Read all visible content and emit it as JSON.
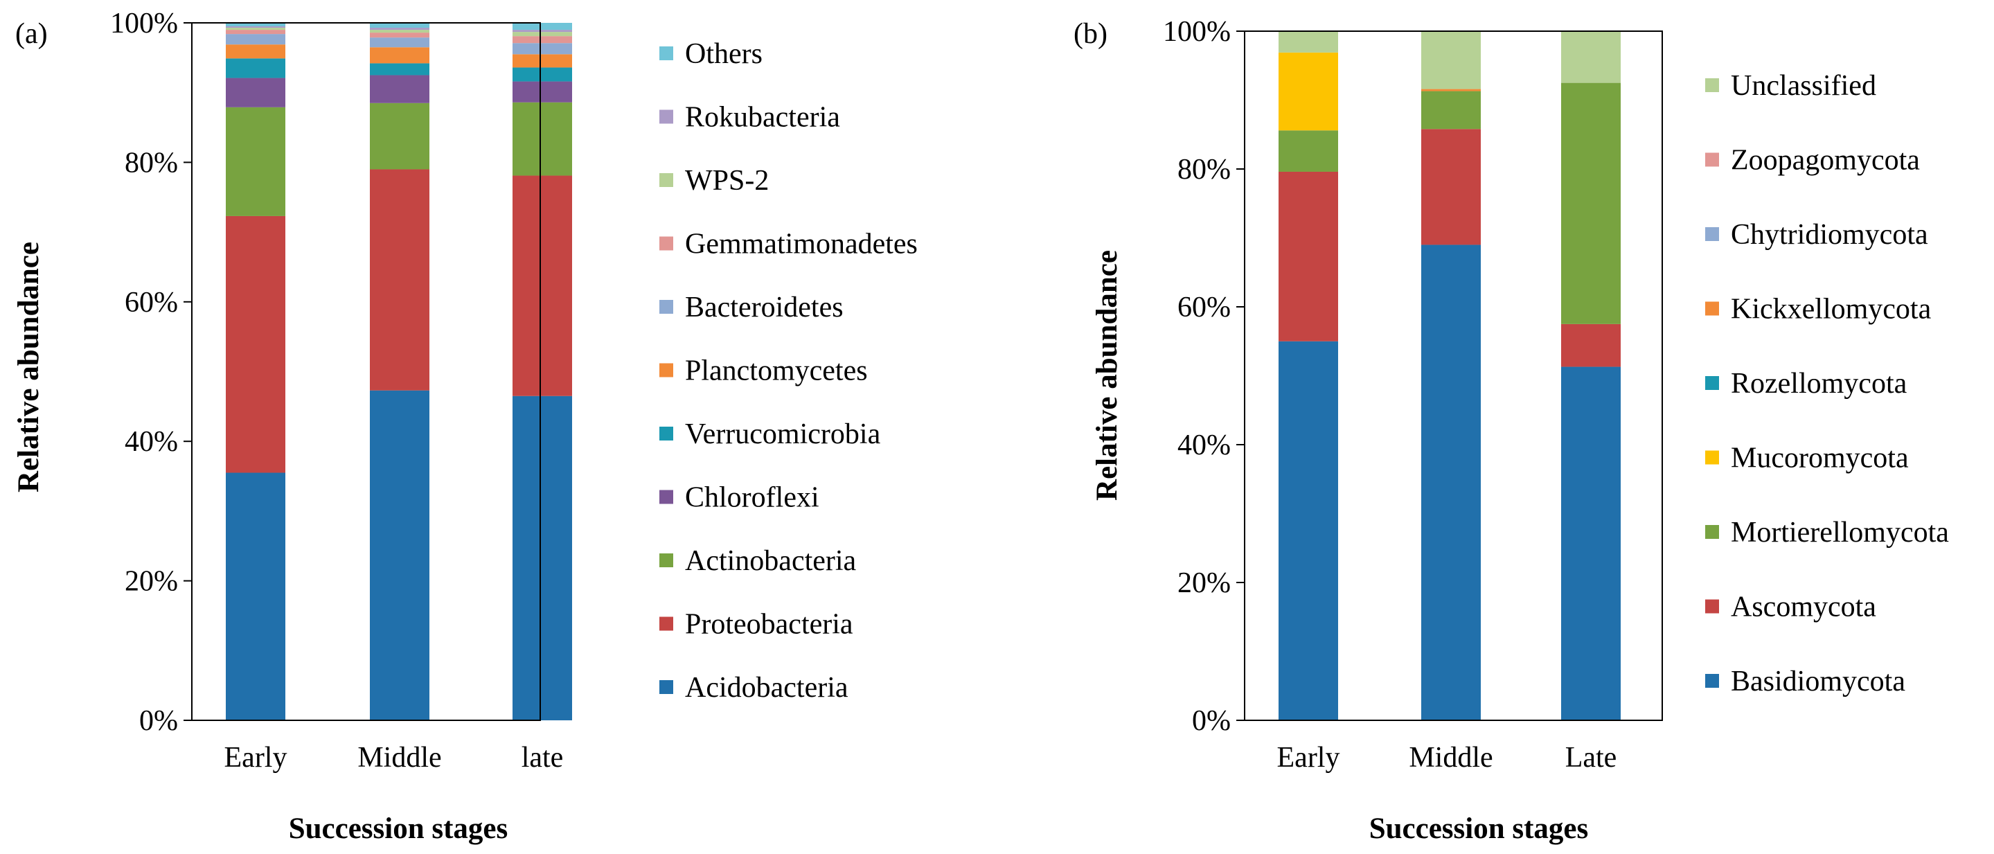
{
  "chart_data": [
    {
      "panel_label": "(a)",
      "type": "bar",
      "stacked": true,
      "percent": true,
      "categories": [
        "Early",
        "Middle",
        "late"
      ],
      "xlabel": "Succession stages",
      "ylabel": "Relative abundance",
      "ylim": [
        0,
        100
      ],
      "yticks": [
        "0%",
        "20%",
        "40%",
        "60%",
        "80%",
        "100%"
      ],
      "grid": false,
      "legend_position": "right",
      "series": [
        {
          "name": "Acidobacteria",
          "color": "#2170ab",
          "values": [
            35.5,
            47.3,
            46.5
          ]
        },
        {
          "name": "Proteobacteria",
          "color": "#c44543",
          "values": [
            36.8,
            31.7,
            31.6
          ]
        },
        {
          "name": "Actinobacteria",
          "color": "#78a340",
          "values": [
            15.6,
            9.5,
            10.5
          ]
        },
        {
          "name": "Chloroflexi",
          "color": "#7a5595",
          "values": [
            4.2,
            4.0,
            3.0
          ]
        },
        {
          "name": "Verrucomicrobia",
          "color": "#1a98b0",
          "values": [
            2.8,
            1.7,
            2.0
          ]
        },
        {
          "name": "Planctomycetes",
          "color": "#f28a37",
          "values": [
            2.0,
            2.3,
            1.9
          ]
        },
        {
          "name": "Bacteroidetes",
          "color": "#8eaad2",
          "values": [
            1.5,
            1.4,
            1.6
          ]
        },
        {
          "name": "Gemmatimonadetes",
          "color": "#e29693",
          "values": [
            0.6,
            0.7,
            1.0
          ]
        },
        {
          "name": "WPS-2",
          "color": "#b6d195",
          "values": [
            0.3,
            0.4,
            0.6
          ]
        },
        {
          "name": "Rokubacteria",
          "color": "#ab9bc7",
          "values": [
            0.2,
            0.3,
            0.3
          ]
        },
        {
          "name": "Others",
          "color": "#70c4d8",
          "values": [
            0.5,
            0.7,
            1.0
          ]
        }
      ]
    },
    {
      "panel_label": "(b)",
      "type": "bar",
      "stacked": true,
      "percent": true,
      "categories": [
        "Early",
        "Middle",
        "Late"
      ],
      "xlabel": "Succession stages",
      "ylabel": "Relative abundance",
      "ylim": [
        0,
        100
      ],
      "yticks": [
        "0%",
        "20%",
        "40%",
        "60%",
        "80%",
        "100%"
      ],
      "grid": false,
      "legend_position": "right",
      "series": [
        {
          "name": "Basidiomycota",
          "color": "#2170ab",
          "values": [
            55.0,
            69.0,
            51.3
          ]
        },
        {
          "name": "Ascomycota",
          "color": "#c44543",
          "values": [
            24.6,
            16.8,
            6.2
          ]
        },
        {
          "name": "Mortierellomycota",
          "color": "#78a340",
          "values": [
            6.0,
            5.5,
            35.0
          ]
        },
        {
          "name": "Mucoromycota",
          "color": "#fdc300",
          "values": [
            11.3,
            0.0,
            0.0
          ]
        },
        {
          "name": "Rozellomycota",
          "color": "#1a98b0",
          "values": [
            0.0,
            0.0,
            0.0
          ]
        },
        {
          "name": "Kickxellomycota",
          "color": "#f28a37",
          "values": [
            0.0,
            0.3,
            0.0
          ]
        },
        {
          "name": "Chytridiomycota",
          "color": "#8eaad2",
          "values": [
            0.0,
            0.0,
            0.0
          ]
        },
        {
          "name": "Zoopagomycota",
          "color": "#e29693",
          "values": [
            0.0,
            0.0,
            0.0
          ]
        },
        {
          "name": "Unclassified",
          "color": "#b6d195",
          "values": [
            3.1,
            8.4,
            7.5
          ]
        }
      ]
    }
  ]
}
